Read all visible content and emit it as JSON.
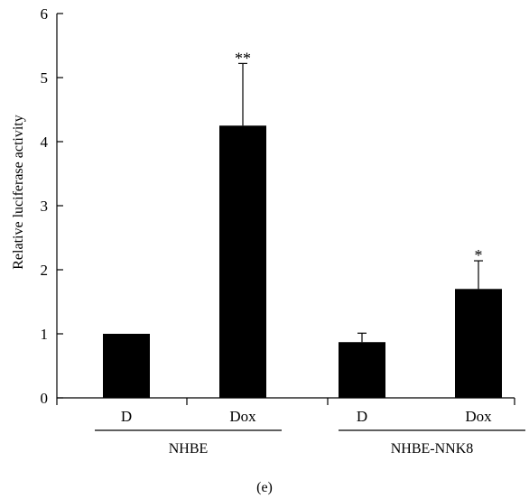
{
  "chart_data": {
    "type": "bar",
    "ylabel": "Relative luciferase activity",
    "xlabel": "",
    "ylim": [
      0,
      6
    ],
    "yticks": [
      0,
      1,
      2,
      3,
      4,
      5,
      6
    ],
    "grid": false,
    "bar_color": "#000000",
    "categories": [
      "D",
      "Dox",
      "D",
      "Dox"
    ],
    "groups": [
      {
        "label": "NHBE",
        "categories": [
          0,
          1
        ]
      },
      {
        "label": "NHBE-NNK8",
        "categories": [
          2,
          3
        ]
      }
    ],
    "values": [
      1.0,
      4.25,
      0.87,
      1.7
    ],
    "error": [
      0.0,
      0.97,
      0.14,
      0.44
    ],
    "significance": [
      "",
      "**",
      "",
      "*"
    ]
  },
  "panel_label": "(e)"
}
